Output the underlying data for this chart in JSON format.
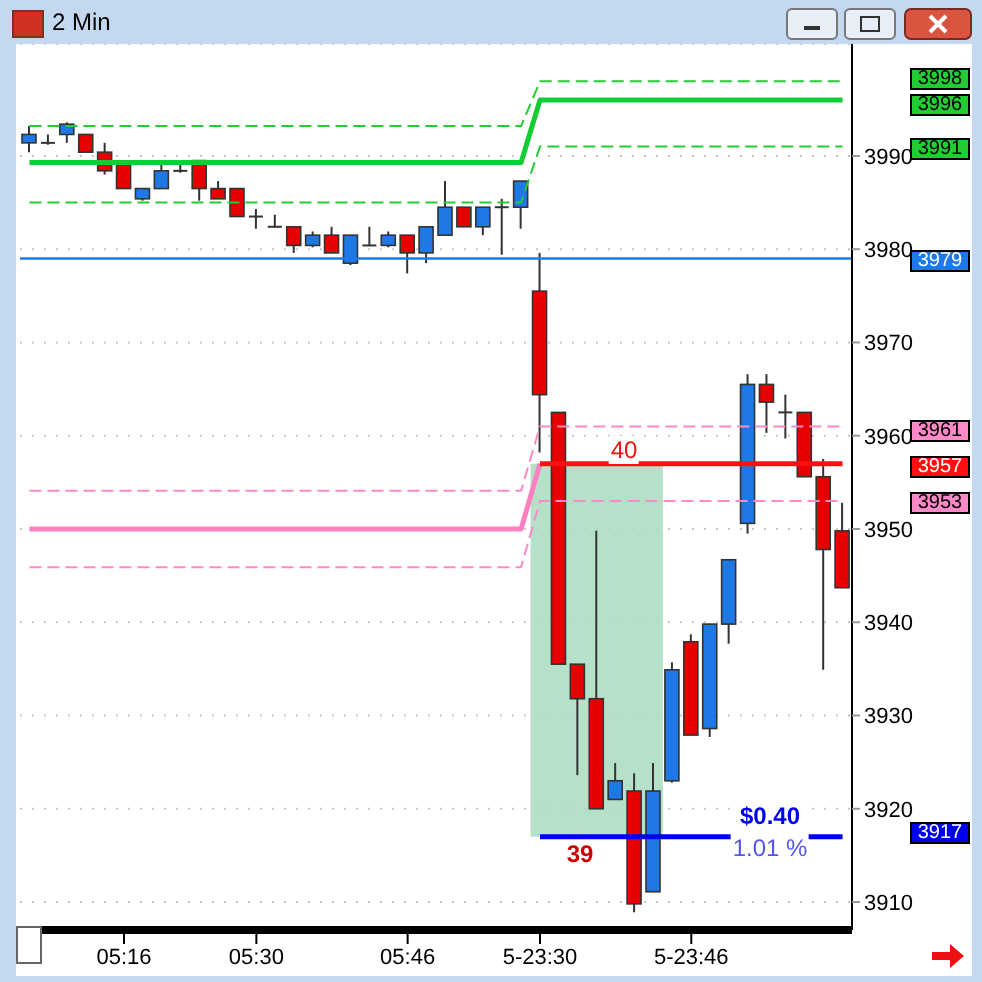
{
  "chart_data": {
    "type": "candlestick",
    "title": "2 Min",
    "categories": [
      null,
      null,
      null,
      null,
      null,
      "05:16",
      null,
      null,
      null,
      null,
      null,
      null,
      "05:30",
      null,
      null,
      null,
      null,
      null,
      null,
      null,
      "05:46",
      null,
      null,
      null,
      null,
      null,
      null,
      "5-23:30",
      null,
      null,
      null,
      null,
      null,
      null,
      null,
      "5-23:46",
      null,
      null,
      null,
      null,
      null,
      null,
      null,
      null
    ],
    "series": [
      {
        "type": "line",
        "color": "#22cc33",
        "line_style": "dashed",
        "values": [
          3993.2,
          3993.2,
          3993.2,
          3993.2,
          3993.2,
          3993.2,
          3993.2,
          3993.2,
          3993.2,
          3993.2,
          3993.2,
          3993.2,
          3993.2,
          3993.2,
          3993.2,
          3993.2,
          3993.2,
          3993.2,
          3993.2,
          3993.2,
          3993.2,
          3993.2,
          3993.2,
          3993.2,
          3993.2,
          3993.2,
          3993.2,
          3998,
          3998,
          3998,
          3998,
          3998,
          3998,
          3998,
          3998,
          3998,
          3998,
          3998,
          3998,
          3998,
          3998,
          3998,
          3998,
          3998
        ]
      },
      {
        "type": "line",
        "color": "#11cc33",
        "line_style": "solid",
        "values": [
          3989.3,
          3989.3,
          3989.3,
          3989.3,
          3989.3,
          3989.3,
          3989.3,
          3989.3,
          3989.3,
          3989.3,
          3989.3,
          3989.3,
          3989.3,
          3989.3,
          3989.3,
          3989.3,
          3989.3,
          3989.3,
          3989.3,
          3989.3,
          3989.3,
          3989.3,
          3989.3,
          3989.3,
          3989.3,
          3989.3,
          3989.3,
          3996,
          3996,
          3996,
          3996,
          3996,
          3996,
          3996,
          3996,
          3996,
          3996,
          3996,
          3996,
          3996,
          3996,
          3996,
          3996,
          3996
        ]
      },
      {
        "type": "line",
        "color": "#22cc34",
        "line_style": "dashed",
        "values": [
          3985,
          3985,
          3985,
          3985,
          3985,
          3985,
          3985,
          3985,
          3985,
          3985,
          3985,
          3985,
          3985,
          3985,
          3985,
          3985,
          3985,
          3985,
          3985,
          3985,
          3985,
          3985,
          3985,
          3985,
          3985,
          3985,
          3985,
          3991,
          3991,
          3991,
          3991,
          3991,
          3991,
          3991,
          3991,
          3991,
          3991,
          3991,
          3991,
          3991,
          3991,
          3991,
          3991,
          3991
        ]
      },
      {
        "type": "line",
        "color": "#ff88c8",
        "line_style": "dashed",
        "values": [
          3954.1,
          3954.1,
          3954.1,
          3954.1,
          3954.1,
          3954.1,
          3954.1,
          3954.1,
          3954.1,
          3954.1,
          3954.1,
          3954.1,
          3954.1,
          3954.1,
          3954.1,
          3954.1,
          3954.1,
          3954.1,
          3954.1,
          3954.1,
          3954.1,
          3954.1,
          3954.1,
          3954.1,
          3954.1,
          3954.1,
          3954.1,
          3961,
          3961,
          3961,
          3961,
          3961,
          3961,
          3961,
          3961,
          3961,
          3961,
          3961,
          3961,
          3961,
          3961,
          3961,
          3961,
          3961
        ]
      },
      {
        "type": "line",
        "color": "#ff80c0",
        "line_style": "solid",
        "values": [
          3950,
          3950,
          3950,
          3950,
          3950,
          3950,
          3950,
          3950,
          3950,
          3950,
          3950,
          3950,
          3950,
          3950,
          3950,
          3950,
          3950,
          3950,
          3950,
          3950,
          3950,
          3950,
          3950,
          3950,
          3950,
          3950,
          3950,
          3957,
          null,
          null,
          null,
          null,
          null,
          null,
          null,
          null,
          null,
          null,
          null,
          null,
          null,
          null,
          null,
          null
        ]
      },
      {
        "type": "line",
        "color": "#ff88c9",
        "line_style": "dashed",
        "values": [
          3945.9,
          3945.9,
          3945.9,
          3945.9,
          3945.9,
          3945.9,
          3945.9,
          3945.9,
          3945.9,
          3945.9,
          3945.9,
          3945.9,
          3945.9,
          3945.9,
          3945.9,
          3945.9,
          3945.9,
          3945.9,
          3945.9,
          3945.9,
          3945.9,
          3945.9,
          3945.9,
          3945.9,
          3945.9,
          3945.9,
          3945.9,
          3953,
          3953,
          3953,
          3953,
          3953,
          3953,
          3953,
          3953,
          3953,
          3953,
          3953,
          3953,
          3953,
          3953,
          3953,
          3953,
          3953
        ]
      },
      {
        "type": "line",
        "color": "#ff1010",
        "line_style": "solid",
        "values": [
          null,
          null,
          null,
          null,
          null,
          null,
          null,
          null,
          null,
          null,
          null,
          null,
          null,
          null,
          null,
          null,
          null,
          null,
          null,
          null,
          null,
          null,
          null,
          null,
          null,
          null,
          null,
          3957,
          3957,
          3957,
          3957,
          3957,
          3957,
          3957,
          3957,
          3957,
          3957,
          3957,
          3957,
          3957,
          3957,
          3957,
          3957,
          3957
        ]
      },
      {
        "type": "line",
        "color": "#0000ee",
        "line_style": "solid",
        "values": [
          null,
          null,
          null,
          null,
          null,
          null,
          null,
          null,
          null,
          null,
          null,
          null,
          null,
          null,
          null,
          null,
          null,
          null,
          null,
          null,
          null,
          null,
          null,
          null,
          null,
          null,
          null,
          3917,
          3917,
          3917,
          3917,
          3917,
          3917,
          3917,
          3917,
          3917,
          3917,
          3917,
          3917,
          3917,
          3917,
          3917,
          3917,
          3917
        ]
      },
      {
        "type": "candlestick",
        "colors": [
          "#1e78e6",
          "#333333",
          "#1e78e6",
          "#e60000",
          "#e60000",
          "#e60000",
          "#1e78e6",
          "#1e78e6",
          "#333333",
          "#e60000",
          "#e60000",
          "#e60000",
          "#333333",
          "#333333",
          "#e60000",
          "#1e78e6",
          "#e60000",
          "#1e78e6",
          "#333333",
          "#1e78e6",
          "#e60000",
          "#1e78e6",
          "#1e78e6",
          "#e60000",
          "#1e78e6",
          "#333333",
          "#1e78e6",
          "#e60000",
          "#e60000",
          "#e60000",
          "#e60000",
          "#1e78e6",
          "#e60000",
          "#1e78e6",
          "#1e78e6",
          "#e60000",
          "#1e78e6",
          "#1e78e6",
          "#1e78e6",
          "#e60000",
          "#333333",
          "#e60000",
          "#e60000",
          "#e60000"
        ],
        "ohlc": [
          [
            3991.4,
            3993.2,
            3990.4,
            3992.3
          ],
          [
            3991.4,
            3992.3,
            3991.2,
            3991.4
          ],
          [
            3992.3,
            3993.6,
            3991.4,
            3993.4
          ],
          [
            3992.3,
            3992.3,
            3990.4,
            3990.4
          ],
          [
            3990.4,
            3991.4,
            3988.0,
            3988.4
          ],
          [
            3989.3,
            3989.3,
            3986.5,
            3986.5
          ],
          [
            3985.4,
            3986.5,
            3985.2,
            3986.5
          ],
          [
            3986.5,
            3989.5,
            3986.5,
            3988.4
          ],
          [
            3988.4,
            3989.5,
            3988.2,
            3988.4
          ],
          [
            3989.5,
            3989.5,
            3985.2,
            3986.5
          ],
          [
            3986.5,
            3987.3,
            3985.4,
            3985.4
          ],
          [
            3986.5,
            3986.5,
            3983.5,
            3983.5
          ],
          [
            3983.5,
            3984.3,
            3982.2,
            3983.5
          ],
          [
            3982.4,
            3983.7,
            3982.4,
            3982.4
          ],
          [
            3982.4,
            3982.4,
            3979.6,
            3980.4
          ],
          [
            3980.4,
            3981.9,
            3980.2,
            3981.5
          ],
          [
            3981.5,
            3982.4,
            3979.6,
            3979.6
          ],
          [
            3978.5,
            3981.5,
            3978.3,
            3981.5
          ],
          [
            3980.4,
            3982.4,
            3980.4,
            3980.4
          ],
          [
            3980.4,
            3981.9,
            3980.2,
            3981.5
          ],
          [
            3981.5,
            3981.5,
            3977.4,
            3979.6
          ],
          [
            3979.6,
            3982.4,
            3978.5,
            3982.4
          ],
          [
            3981.5,
            3987.3,
            3981.5,
            3984.5
          ],
          [
            3984.5,
            3984.5,
            3982.4,
            3982.4
          ],
          [
            3982.4,
            3984.5,
            3981.5,
            3984.5
          ],
          [
            3984.5,
            3985.4,
            3979.4,
            3984.5
          ],
          [
            3984.5,
            3987.3,
            3982.2,
            3987.3
          ],
          [
            3975.5,
            3979.6,
            3958.2,
            3964.4
          ],
          [
            3962.5,
            3962.5,
            3935.5,
            3935.5
          ],
          [
            3935.5,
            3935.5,
            3923.6,
            3931.8
          ],
          [
            3931.8,
            3949.8,
            3920.0,
            3920.0
          ],
          [
            3921.0,
            3924.9,
            3921.0,
            3923.0
          ],
          [
            3921.9,
            3923.8,
            3908.9,
            3909.8
          ],
          [
            3911.1,
            3924.9,
            3911.1,
            3921.9
          ],
          [
            3923.0,
            3935.7,
            3922.8,
            3934.9
          ],
          [
            3937.9,
            3938.7,
            3927.9,
            3927.9
          ],
          [
            3928.6,
            3939.8,
            3927.7,
            3939.8
          ],
          [
            3939.8,
            3946.7,
            3937.7,
            3946.7
          ],
          [
            3950.6,
            3966.6,
            3949.5,
            3965.5
          ],
          [
            3965.5,
            3966.6,
            3960.3,
            3963.6
          ],
          [
            3962.5,
            3964.4,
            3959.7,
            3962.5
          ],
          [
            3962.5,
            3962.5,
            3955.6,
            3955.6
          ],
          [
            3955.6,
            3957.5,
            3934.9,
            3947.8
          ],
          [
            3949.8,
            3952.8,
            3943.7,
            3943.7
          ]
        ]
      }
    ],
    "ref_lines": [
      {
        "axis": "y",
        "value": 3979,
        "color": "#1e78e6",
        "line_style": "solid"
      }
    ],
    "bands": [
      {
        "axis": "y",
        "from": 3917,
        "to": 3957,
        "color": "#a8dcc0"
      }
    ],
    "annotations": [
      "40",
      "39",
      "$0.40",
      "1.01 %",
      "3998",
      "3996",
      "3991",
      "3979",
      "3961",
      "3957",
      "3953",
      "3917"
    ],
    "ylim": [
      3907,
      4002
    ],
    "yticks": [
      3910,
      3920,
      3930,
      3940,
      3950,
      3960,
      3970,
      3980,
      3990
    ],
    "grid": "y"
  }
}
